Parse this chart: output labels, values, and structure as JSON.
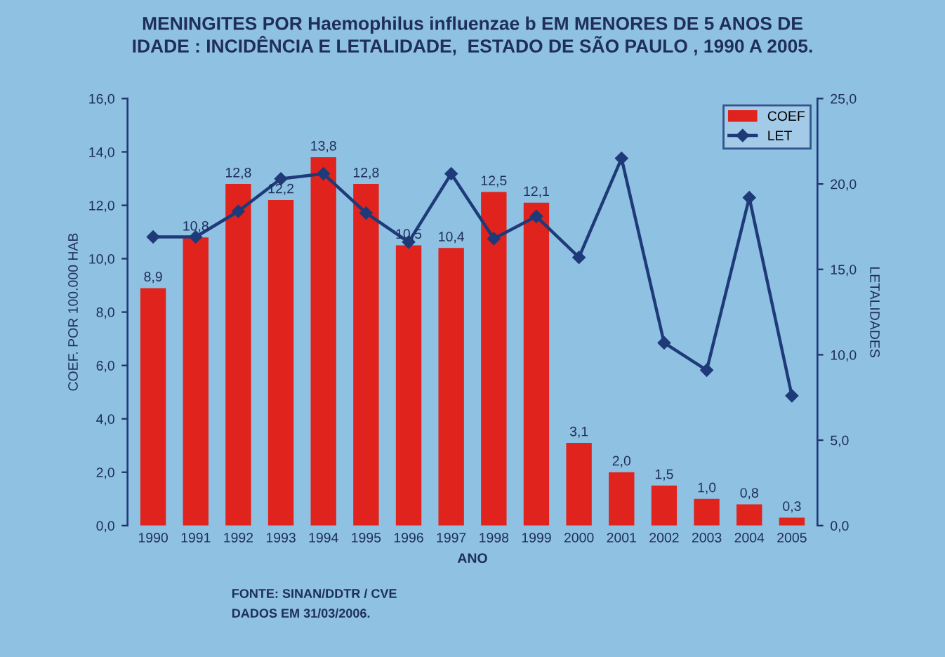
{
  "chart_data": {
    "type": "bar",
    "title": "MENINGITES POR Haemophilus influenzae b EM MENORES DE 5 ANOS DE\nIDADE : INCIDÊNCIA E LETALIDADE,  ESTADO DE SÃO PAULO , 1990 A 2005.",
    "xlabel": "ANO",
    "ylabel": "COEF. POR 100.000 HAB",
    "y2label": "LETALIDADES",
    "categories": [
      "1990",
      "1991",
      "1992",
      "1993",
      "1994",
      "1995",
      "1996",
      "1997",
      "1998",
      "1999",
      "2000",
      "2001",
      "2002",
      "2003",
      "2004",
      "2005"
    ],
    "series": [
      {
        "name": "COEF",
        "color": "#e0231c",
        "values": [
          8.9,
          10.8,
          12.8,
          12.2,
          13.8,
          12.8,
          10.5,
          10.4,
          12.5,
          12.1,
          3.1,
          2.0,
          1.5,
          1.0,
          0.8,
          0.3
        ],
        "value_labels": [
          "8,9",
          "10,8",
          "12,8",
          "12,2",
          "13,8",
          "12,8",
          "10,5",
          "10,4",
          "12,5",
          "12,1",
          "3,1",
          "2,0",
          "1,5",
          "1,0",
          "0,8",
          "0,3"
        ]
      },
      {
        "name": "LET",
        "type": "line",
        "axis": "y2",
        "color": "#1f3a78",
        "marker": "diamond",
        "values": [
          16.9,
          16.9,
          18.4,
          20.3,
          20.6,
          18.3,
          16.6,
          20.6,
          16.8,
          18.1,
          15.7,
          21.5,
          10.7,
          9.1,
          19.2,
          7.6
        ]
      }
    ],
    "ylim": [
      0,
      16
    ],
    "yticks": [
      {
        "value": 0,
        "label": "0,0"
      },
      {
        "value": 2,
        "label": "2,0"
      },
      {
        "value": 4,
        "label": "4,0"
      },
      {
        "value": 6,
        "label": "6,0"
      },
      {
        "value": 8,
        "label": "8,0"
      },
      {
        "value": 10,
        "label": "10,0"
      },
      {
        "value": 12,
        "label": "12,0"
      },
      {
        "value": 14,
        "label": "14,0"
      },
      {
        "value": 16,
        "label": "16,0"
      }
    ],
    "y2lim": [
      0,
      25
    ],
    "y2ticks": [
      {
        "value": 0,
        "label": "0,0"
      },
      {
        "value": 5,
        "label": "5,0"
      },
      {
        "value": 10,
        "label": "10,0"
      },
      {
        "value": 15,
        "label": "15,0"
      },
      {
        "value": 20,
        "label": "20,0"
      },
      {
        "value": 25,
        "label": "25,0"
      }
    ],
    "grid": false,
    "legend": "top right",
    "annotations": [
      "FONTE: SINAN/DDTR / CVE",
      "DADOS EM 31/03/2006."
    ]
  }
}
